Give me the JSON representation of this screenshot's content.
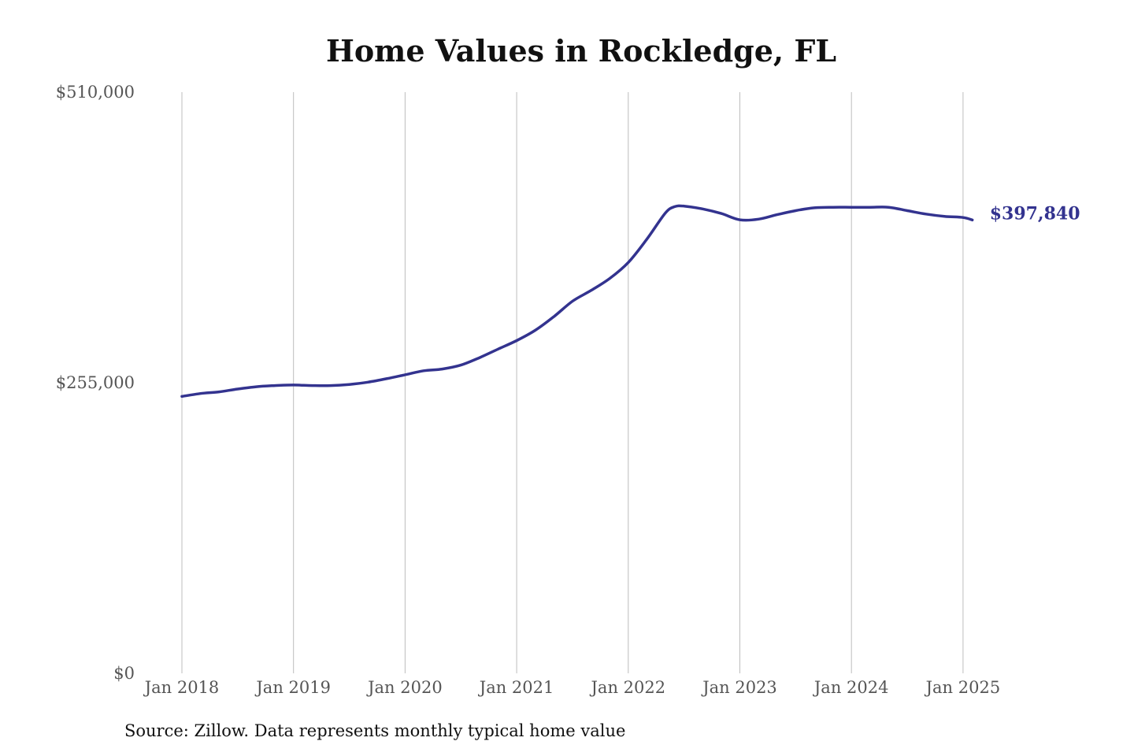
{
  "colors": {
    "series": "#33338f",
    "grid": "#bdbdbd",
    "tick_text": "#555555",
    "title_text": "#111111"
  },
  "chart_data": {
    "type": "line",
    "title": "Home Values in Rockledge, FL",
    "xlabel": "",
    "ylabel": "",
    "source": "Source: Zillow. Data represents monthly typical home value",
    "ylim": [
      0,
      510000
    ],
    "y_ticks": [
      {
        "value": 0,
        "label": "$0"
      },
      {
        "value": 255000,
        "label": "$255,000"
      },
      {
        "value": 510000,
        "label": "$510,000"
      }
    ],
    "x_ticks": [
      {
        "value": "2018-01",
        "label": "Jan 2018"
      },
      {
        "value": "2019-01",
        "label": "Jan 2019"
      },
      {
        "value": "2020-01",
        "label": "Jan 2020"
      },
      {
        "value": "2021-01",
        "label": "Jan 2021"
      },
      {
        "value": "2022-01",
        "label": "Jan 2022"
      },
      {
        "value": "2023-01",
        "label": "Jan 2023"
      },
      {
        "value": "2024-01",
        "label": "Jan 2024"
      },
      {
        "value": "2025-01",
        "label": "Jan 2025"
      }
    ],
    "grid": {
      "vertical": true,
      "horizontal": false
    },
    "end_label": "$397,840",
    "series": [
      {
        "x": [
          "2018-01",
          "2018-03",
          "2018-05",
          "2018-07",
          "2018-09",
          "2018-11",
          "2019-01",
          "2019-03",
          "2019-05",
          "2019-07",
          "2019-09",
          "2019-11",
          "2020-01",
          "2020-03",
          "2020-05",
          "2020-07",
          "2020-09",
          "2020-11",
          "2021-01",
          "2021-03",
          "2021-05",
          "2021-07",
          "2021-09",
          "2021-11",
          "2022-01",
          "2022-03",
          "2022-05",
          "2022-06",
          "2022-07",
          "2022-09",
          "2022-11",
          "2023-01",
          "2023-03",
          "2023-05",
          "2023-07",
          "2023-09",
          "2023-11",
          "2024-01",
          "2024-03",
          "2024-05",
          "2024-07",
          "2024-09",
          "2024-11",
          "2025-01",
          "2025-02"
        ],
        "values": [
          243000,
          245500,
          247000,
          249500,
          251500,
          252500,
          253000,
          252500,
          252500,
          253500,
          255500,
          258500,
          262000,
          265500,
          267000,
          270500,
          277000,
          284500,
          292000,
          301000,
          313000,
          326500,
          336000,
          346500,
          360500,
          381000,
          404000,
          409500,
          410000,
          407500,
          403500,
          398000,
          398500,
          402500,
          406000,
          408500,
          409000,
          409000,
          409000,
          409000,
          406000,
          403000,
          401000,
          400000,
          397840
        ]
      }
    ]
  }
}
